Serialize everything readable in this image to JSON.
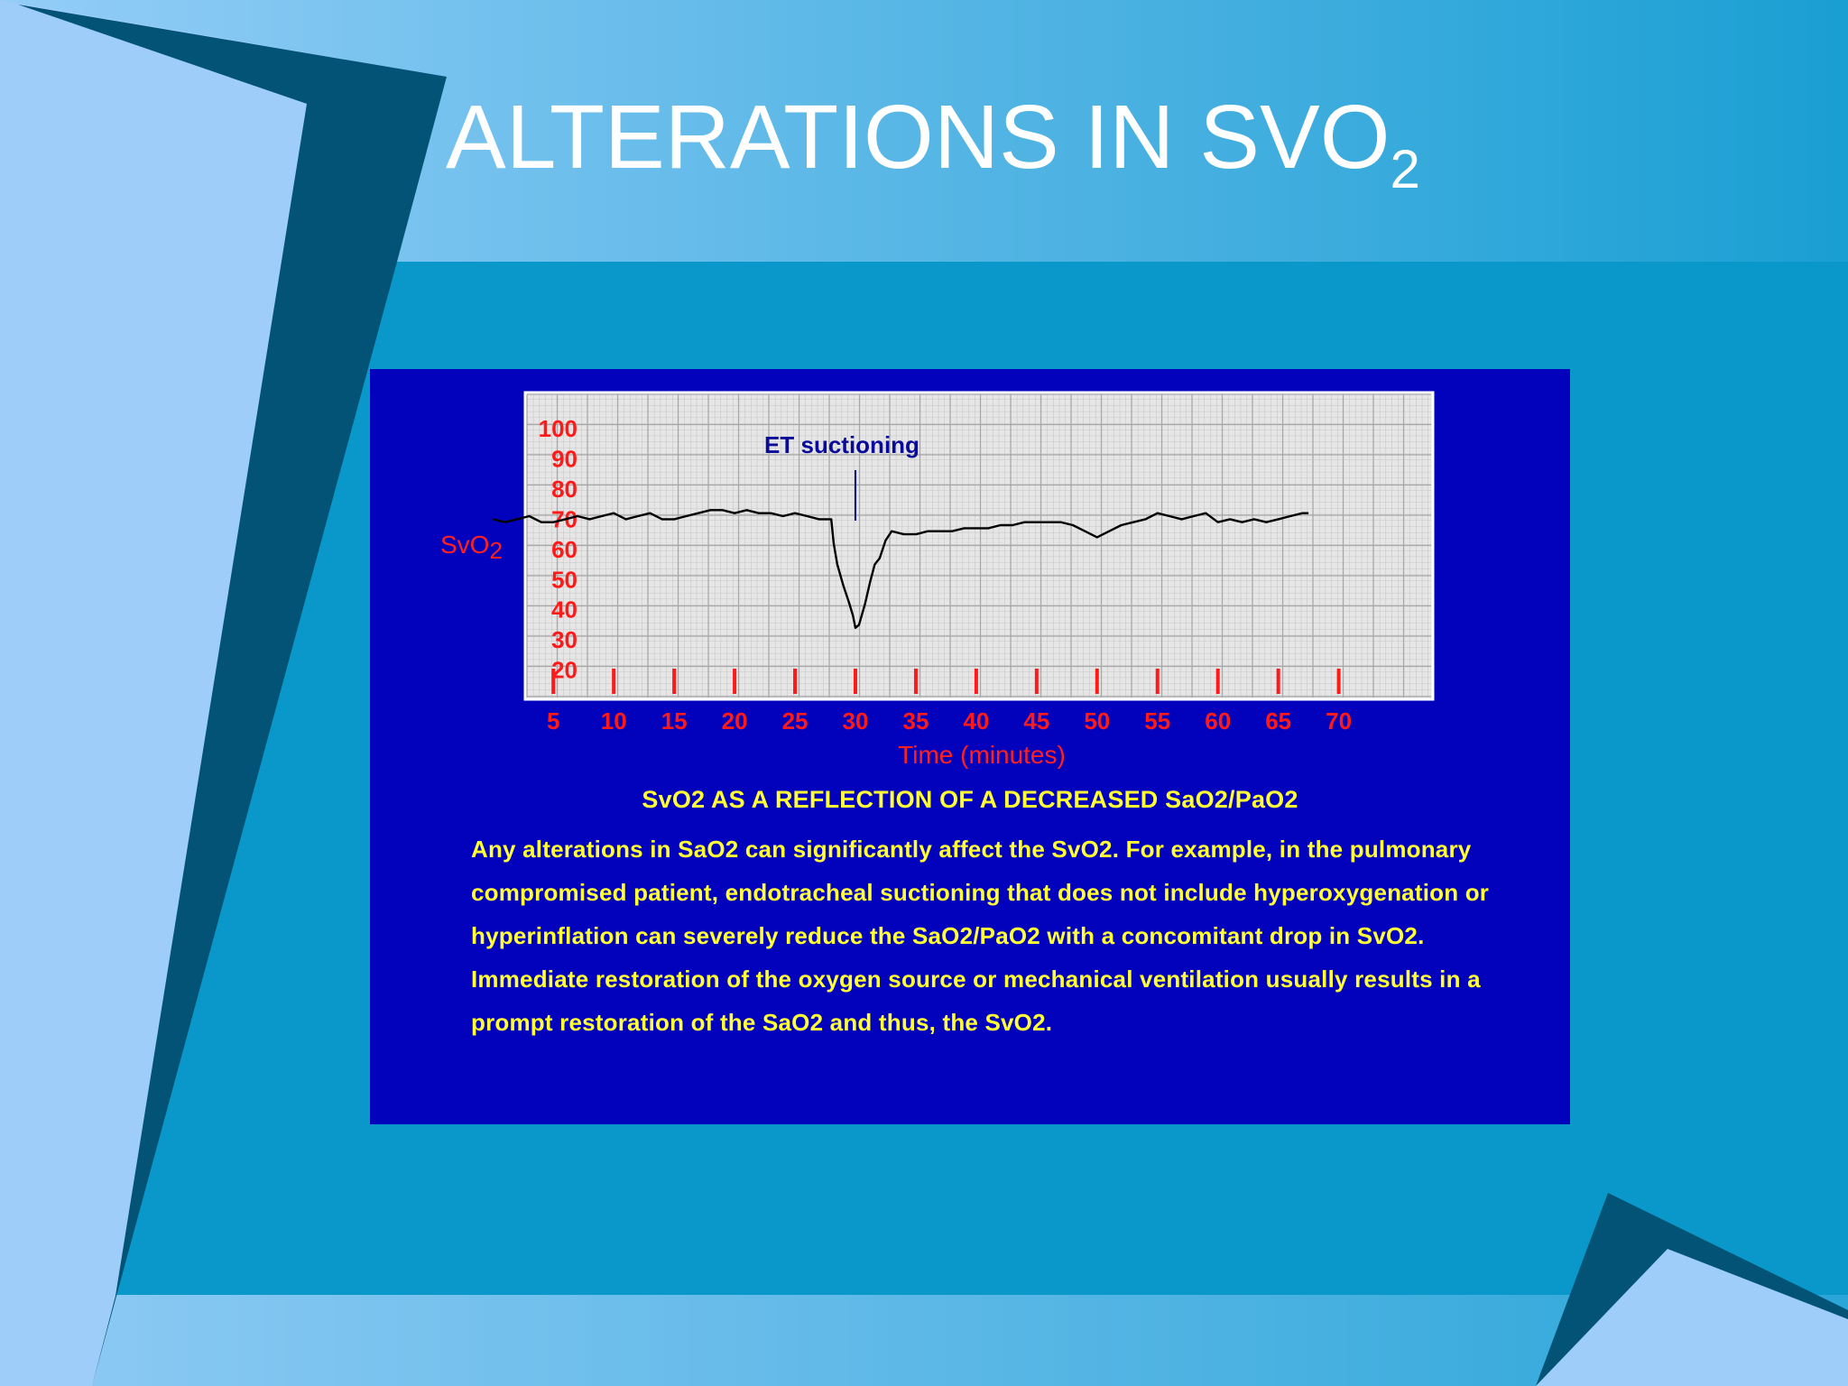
{
  "slide": {
    "title": "ALTERATIONS IN SVO",
    "title_subscript": "2"
  },
  "colors": {
    "background": "#0a97c9",
    "panel": "#0202bd",
    "grid_background": "#e6e6e6",
    "trace": "#000000",
    "axis_labels": "#ff1a1a",
    "caption": "#ffff33"
  },
  "chart_data": {
    "type": "line",
    "ylabel": "SvO",
    "ylabel_subscript": "2",
    "xlabel": "Time (minutes)",
    "ylim": [
      20,
      100
    ],
    "xlim": [
      0,
      70
    ],
    "yticks": [
      100,
      90,
      80,
      70,
      60,
      50,
      40,
      30,
      20
    ],
    "xticks": [
      5,
      10,
      15,
      20,
      25,
      30,
      35,
      40,
      45,
      50,
      55,
      60,
      65,
      70
    ],
    "grid": true,
    "annotation": {
      "text": "ET suctioning",
      "x": 30
    },
    "series": [
      {
        "x": [
          0,
          1,
          2,
          3,
          4,
          5,
          6,
          7,
          8,
          9,
          10,
          11,
          12,
          13,
          14,
          15,
          16,
          17,
          18,
          19,
          20,
          21,
          22,
          23,
          24,
          25,
          26,
          27,
          28,
          28.2,
          28.5,
          29,
          29.5,
          29.8,
          30,
          30.3,
          30.8,
          31.2,
          31.6,
          32,
          32.5,
          33,
          34,
          35,
          36,
          37,
          38,
          39,
          40,
          41,
          42,
          43,
          44,
          45,
          46,
          47,
          48,
          49,
          50,
          51,
          52,
          53,
          54,
          55,
          56,
          57,
          58,
          59,
          60,
          61,
          62,
          63,
          64,
          65,
          66,
          67,
          67.5
        ],
        "values": [
          70,
          69,
          70,
          71,
          69,
          69,
          70,
          71,
          70,
          71,
          72,
          70,
          71,
          72,
          70,
          70,
          71,
          72,
          73,
          73,
          72,
          73,
          72,
          72,
          71,
          72,
          71,
          70,
          70,
          62,
          55,
          48,
          42,
          38,
          34,
          35,
          42,
          49,
          55,
          57,
          63,
          66,
          65,
          65,
          66,
          66,
          66,
          67,
          67,
          67,
          68,
          68,
          69,
          69,
          69,
          69,
          68,
          66,
          64,
          66,
          68,
          69,
          70,
          72,
          71,
          70,
          71,
          72,
          69,
          70,
          69,
          70,
          69,
          70,
          71,
          72,
          72
        ]
      }
    ]
  },
  "caption": {
    "heading": "SvO2 AS A REFLECTION OF A DECREASED SaO2/PaO2",
    "body": "Any alterations in SaO2 can significantly affect the SvO2.  For example, in the pulmonary compromised patient, endotracheal suctioning that does not include hyperoxygenation or hyperinflation can severely reduce the SaO2/PaO2 with a concomitant drop in SvO2.  Immediate restoration of the oxygen source or mechanical ventilation usually results in a prompt restoration of the SaO2 and thus, the SvO2."
  }
}
